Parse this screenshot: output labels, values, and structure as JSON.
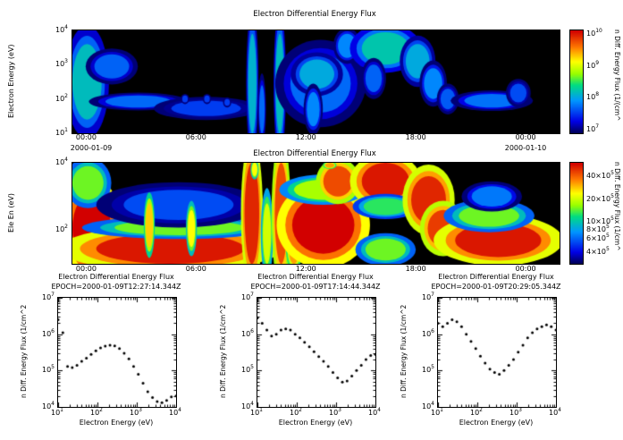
{
  "labels": {
    "top": {
      "title": "Electron Differential Energy Flux",
      "ylabel": "Electron Energy (eV)",
      "colorbar_label": "n Diff. Energy Flux (1/(cm^",
      "date_left": "2000-01-09",
      "date_right": "2000-01-10"
    },
    "mid": {
      "title": "Electron Differential Energy Flux",
      "ylabel": "Ele En (eV)",
      "colorbar_label": "n Diff. Energy Flux (1/cm^"
    },
    "cuts": [
      {
        "title": "Electron Differential Energy Flux",
        "epoch": "EPOCH=2000-01-09T12:27:14.344Z",
        "xlabel": "Electron Energy (eV)",
        "ylabel": "n Diff. Energy Flux (1/cm^2"
      },
      {
        "title": "Electron Differential Energy Flux",
        "epoch": "EPOCH=2000-01-09T17:14:44.344Z",
        "xlabel": "Electron Energy (eV)",
        "ylabel": "n Diff. Energy Flux (1/cm^2"
      },
      {
        "title": "Electron Differential Energy Flux",
        "epoch": "EPOCH=2000-01-09T20:29:05.344Z",
        "xlabel": "Electron Energy (eV)",
        "ylabel": "n Diff. Energy Flux (1/cm^2"
      }
    ]
  },
  "chart_data": [
    {
      "type": "heatmap",
      "title": "Electron Differential Energy Flux",
      "ylabel": "Electron Energy (eV)",
      "t_range": [
        -0.8,
        25.8
      ],
      "e_range": [
        1,
        4
      ],
      "xtick_hours": [
        0,
        6,
        12,
        18,
        24
      ],
      "xtick_labels": [
        "00:00",
        "06:00",
        "12:00",
        "18:00",
        "00:00"
      ],
      "dates": [
        "2000-01-09",
        "2000-01-10"
      ],
      "ytick_exps": [
        1,
        2,
        3,
        4
      ],
      "colorbar": {
        "label": "n Diff. Energy Flux (1/(cm^",
        "log_range": [
          6.9,
          10.1
        ],
        "ticks": [
          [
            1,
            7
          ],
          [
            1,
            8
          ],
          [
            1,
            9
          ],
          [
            1,
            10
          ]
        ]
      },
      "colormap": [
        [
          0,
          [
            0,
            0,
            80
          ]
        ],
        [
          0.12,
          [
            0,
            0,
            230
          ]
        ],
        [
          0.32,
          [
            0,
            150,
            255
          ]
        ],
        [
          0.47,
          [
            0,
            220,
            130
          ]
        ],
        [
          0.58,
          [
            150,
            255,
            0
          ]
        ],
        [
          0.7,
          [
            255,
            255,
            0
          ]
        ],
        [
          0.84,
          [
            255,
            120,
            0
          ]
        ],
        [
          1,
          [
            210,
            0,
            0
          ]
        ]
      ],
      "blobs": [
        [
          -0.8,
          0.8,
          1.4,
          3.6,
          0.4
        ],
        [
          0.4,
          2.3,
          2.6,
          3.3,
          0.25
        ],
        [
          1.0,
          4.6,
          1.75,
          2.1,
          0.26
        ],
        [
          4.6,
          8.4,
          1.5,
          1.95,
          0.2
        ],
        [
          5.2,
          5.5,
          1.9,
          2.1,
          0.2
        ],
        [
          6.4,
          6.7,
          1.9,
          2.1,
          0.2
        ],
        [
          7.5,
          7.8,
          1.8,
          2.0,
          0.2
        ],
        [
          8.8,
          9.25,
          1.0,
          3.9,
          0.38
        ],
        [
          9.4,
          9.7,
          1.0,
          2.4,
          0.26
        ],
        [
          10.3,
          10.75,
          1.0,
          3.9,
          0.4
        ],
        [
          11.1,
          14.4,
          1.6,
          3.3,
          0.26
        ],
        [
          11.6,
          13.5,
          2.3,
          3.15,
          0.36
        ],
        [
          12.0,
          12.7,
          1.2,
          2.2,
          0.3
        ],
        [
          13.7,
          14.7,
          3.2,
          3.9,
          0.3
        ],
        [
          15.0,
          17.6,
          3.0,
          3.95,
          0.42
        ],
        [
          15.2,
          16.1,
          2.2,
          3.0,
          0.25
        ],
        [
          17.4,
          18.7,
          2.6,
          3.6,
          0.36
        ],
        [
          18.4,
          19.4,
          2.0,
          2.9,
          0.3
        ],
        [
          19.3,
          20.1,
          1.7,
          2.3,
          0.24
        ],
        [
          20.6,
          23.6,
          1.75,
          2.15,
          0.27
        ],
        [
          23.1,
          24.0,
          1.9,
          2.45,
          0.22
        ]
      ]
    },
    {
      "type": "heatmap",
      "title": "Electron Differential Energy Flux",
      "ylabel": "Ele En (eV)",
      "t_range": [
        -0.8,
        25.8
      ],
      "e_range": [
        1,
        4
      ],
      "xtick_hours": [
        0,
        6,
        12,
        18,
        24
      ],
      "xtick_labels": [
        "00:00",
        "06:00",
        "12:00",
        "18:00",
        "00:00"
      ],
      "ytick_exps": [
        2,
        4
      ],
      "colorbar": {
        "label": "n Diff. Energy Flux (1/cm^",
        "log_range": [
          5.45,
          6.78
        ],
        "ticks": [
          [
            4,
            5
          ],
          [
            6,
            5
          ],
          [
            8,
            5
          ],
          [
            10,
            5
          ],
          [
            20,
            5
          ],
          [
            40,
            5
          ]
        ]
      },
      "blobs": [
        [
          -0.8,
          1.3,
          1.0,
          3.1,
          1.0
        ],
        [
          -0.8,
          0.9,
          2.9,
          3.9,
          0.55
        ],
        [
          0.5,
          8.6,
          1.0,
          1.9,
          0.97
        ],
        [
          1.5,
          8.6,
          1.85,
          2.3,
          0.55
        ],
        [
          2.0,
          8.0,
          2.3,
          3.2,
          0.22
        ],
        [
          3.2,
          3.6,
          1.5,
          2.8,
          0.75
        ],
        [
          5.5,
          5.9,
          1.5,
          2.6,
          0.7
        ],
        [
          8.6,
          9.4,
          1.0,
          4.0,
          0.95
        ],
        [
          9.0,
          9.3,
          3.6,
          4.0,
          0.7
        ],
        [
          9.6,
          10.05,
          1.0,
          2.8,
          0.65
        ],
        [
          10.25,
          10.95,
          1.0,
          4.0,
          0.9
        ],
        [
          11.0,
          11.6,
          1.0,
          2.0,
          0.8
        ],
        [
          11.2,
          14.6,
          1.3,
          3.0,
          1.0
        ],
        [
          11.3,
          14.5,
          2.9,
          3.5,
          0.6
        ],
        [
          12.9,
          14.5,
          3.0,
          3.9,
          0.9
        ],
        [
          13.0,
          13.5,
          3.85,
          4.0,
          0.8
        ],
        [
          15.0,
          17.6,
          2.9,
          4.0,
          0.97
        ],
        [
          15.1,
          17.5,
          2.45,
          2.95,
          0.5
        ],
        [
          15.2,
          17.4,
          1.1,
          1.75,
          0.55
        ],
        [
          17.7,
          19.6,
          2.2,
          3.6,
          0.95
        ],
        [
          18.6,
          20.3,
          1.5,
          2.6,
          0.92
        ],
        [
          20.1,
          24.8,
          1.2,
          2.2,
          0.97
        ],
        [
          20.3,
          23.6,
          2.1,
          2.75,
          0.55
        ],
        [
          21.0,
          23.2,
          2.7,
          3.3,
          0.28
        ]
      ]
    },
    {
      "type": "scatter",
      "title": "Electron Differential Energy Flux",
      "epoch": "EPOCH=2000-01-09T12:27:14.344Z",
      "xlabel": "Electron Energy (eV)",
      "ylabel": "n Diff. Energy Flux (1/cm^2",
      "xlog_range": [
        1,
        4
      ],
      "ylog_range": [
        4,
        7
      ],
      "xtick_exps": [
        1,
        2,
        3,
        4
      ],
      "ytick_exps": [
        4,
        5,
        6,
        7
      ],
      "x": [
        10,
        13.2,
        17.4,
        22.9,
        30.2,
        39.8,
        52.5,
        69.2,
        91.2,
        120,
        158,
        209,
        275,
        363,
        479,
        631,
        832,
        1096,
        1445,
        1905,
        2512,
        3311,
        4365,
        5754,
        7586,
        10000
      ],
      "y": [
        2500000.0,
        1100000.0,
        130000.0,
        120000.0,
        140000.0,
        180000.0,
        220000.0,
        280000.0,
        350000.0,
        420000.0,
        470000.0,
        500000.0,
        480000.0,
        400000.0,
        300000.0,
        210000.0,
        130000.0,
        79000.0,
        45000.0,
        26000.0,
        18000.0,
        14000.0,
        13000.0,
        15000.0,
        19000.0,
        20000.0
      ]
    },
    {
      "type": "scatter",
      "title": "Electron Differential Energy Flux",
      "epoch": "EPOCH=2000-01-09T17:14:44.344Z",
      "xlabel": "Electron Energy (eV)",
      "ylabel": "n Diff. Energy Flux (1/cm^2",
      "xlog_range": [
        1,
        4
      ],
      "ylog_range": [
        4,
        7
      ],
      "xtick_exps": [
        1,
        2,
        3,
        4
      ],
      "ytick_exps": [
        4,
        5,
        6,
        7
      ],
      "x": [
        10,
        13.2,
        17.4,
        22.9,
        30.2,
        39.8,
        52.5,
        69.2,
        91.2,
        120,
        158,
        209,
        275,
        363,
        479,
        631,
        832,
        1096,
        1445,
        1905,
        2512,
        3311,
        4365,
        5754,
        7586,
        10000
      ],
      "y": [
        2800000.0,
        2000000.0,
        1300000.0,
        890000.0,
        1000000.0,
        1300000.0,
        1400000.0,
        1300000.0,
        1000000.0,
        790000.0,
        600000.0,
        450000.0,
        330000.0,
        240000.0,
        180000.0,
        130000.0,
        89000.0,
        63000.0,
        48000.0,
        52000.0,
        71000.0,
        100000.0,
        140000.0,
        200000.0,
        260000.0,
        280000.0
      ]
    },
    {
      "type": "scatter",
      "title": "Electron Differential Energy Flux",
      "epoch": "EPOCH=2000-01-09T20:29:05.344Z",
      "xlabel": "Electron Energy (eV)",
      "ylabel": "n Diff. Energy Flux (1/cm^2",
      "xlog_range": [
        1,
        4
      ],
      "ylog_range": [
        4,
        7
      ],
      "xtick_exps": [
        1,
        2,
        3,
        4
      ],
      "ytick_exps": [
        4,
        5,
        6,
        7
      ],
      "x": [
        10,
        13.2,
        17.4,
        22.9,
        30.2,
        39.8,
        52.5,
        69.2,
        91.2,
        120,
        158,
        209,
        275,
        363,
        479,
        631,
        832,
        1096,
        1445,
        1905,
        2512,
        3311,
        4365,
        5754,
        7586,
        10000
      ],
      "y": [
        2000000.0,
        1600000.0,
        2000000.0,
        2500000.0,
        2200000.0,
        1600000.0,
        1000000.0,
        630000.0,
        400000.0,
        250000.0,
        160000.0,
        110000.0,
        89000.0,
        79000.0,
        100000.0,
        140000.0,
        200000.0,
        320000.0,
        500000.0,
        790000.0,
        1100000.0,
        1400000.0,
        1600000.0,
        1800000.0,
        1600000.0,
        1300000.0
      ]
    }
  ]
}
